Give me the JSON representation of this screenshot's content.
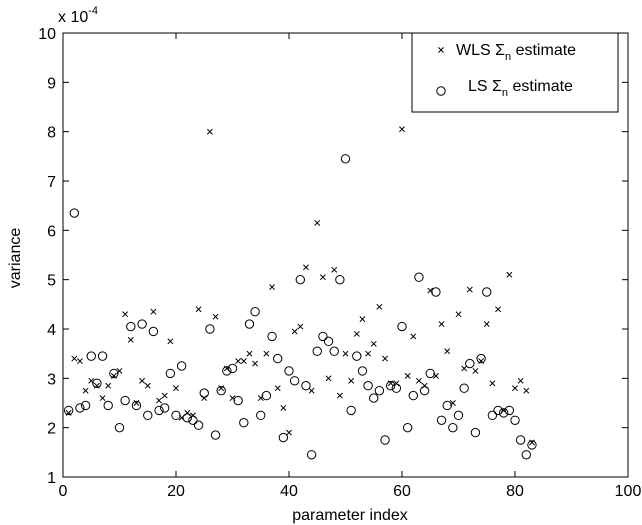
{
  "chart_data": {
    "type": "scatter",
    "xlabel": "parameter index",
    "ylabel": "variance",
    "y_exponent_label": "x 10",
    "y_exponent_power": "-4",
    "xlim": [
      0,
      100
    ],
    "ylim": [
      1,
      10
    ],
    "xticks": [
      0,
      20,
      40,
      60,
      80,
      100
    ],
    "yticks": [
      1,
      2,
      3,
      4,
      5,
      6,
      7,
      8,
      9,
      10
    ],
    "grid": false,
    "legend_position": "top-right",
    "series": [
      {
        "name": "WLS Σn estimate",
        "legend_base": "WLS Σ",
        "legend_sub": "n",
        "legend_tail": " estimate",
        "marker": "x",
        "x": [
          1,
          2,
          3,
          4,
          5,
          6,
          7,
          8,
          9,
          10,
          11,
          12,
          13,
          14,
          15,
          16,
          17,
          18,
          19,
          20,
          21,
          22,
          23,
          24,
          25,
          26,
          27,
          28,
          29,
          30,
          31,
          32,
          33,
          34,
          35,
          36,
          37,
          38,
          39,
          40,
          41,
          42,
          43,
          44,
          45,
          46,
          47,
          48,
          49,
          50,
          51,
          52,
          53,
          54,
          55,
          56,
          57,
          58,
          59,
          60,
          61,
          62,
          63,
          64,
          65,
          66,
          67,
          68,
          69,
          70,
          71,
          72,
          73,
          74,
          75,
          76,
          77,
          78,
          79,
          80,
          81,
          82,
          83
        ],
        "y": [
          2.3,
          3.4,
          3.35,
          2.75,
          2.95,
          2.85,
          2.6,
          2.85,
          3.05,
          3.15,
          4.3,
          3.78,
          2.5,
          2.95,
          2.85,
          4.35,
          2.55,
          2.65,
          3.75,
          2.8,
          2.2,
          2.3,
          2.25,
          4.4,
          2.6,
          8.0,
          4.25,
          2.8,
          3.2,
          2.6,
          3.35,
          3.35,
          3.5,
          3.3,
          2.6,
          3.5,
          4.85,
          2.8,
          2.4,
          1.9,
          3.95,
          4.05,
          5.25,
          2.75,
          6.15,
          5.05,
          3.0,
          5.2,
          2.65,
          3.5,
          2.95,
          3.9,
          4.2,
          3.5,
          3.7,
          4.45,
          3.4,
          2.9,
          2.9,
          8.05,
          3.05,
          3.85,
          2.95,
          2.85,
          4.78,
          3.05,
          4.1,
          3.55,
          2.5,
          4.3,
          3.2,
          4.8,
          3.15,
          3.35,
          4.1,
          2.9,
          4.4,
          2.35,
          5.1,
          2.8,
          2.95,
          2.75,
          1.7
        ]
      },
      {
        "name": "LS Σn estimate",
        "legend_base": "LS Σ",
        "legend_sub": "n",
        "legend_tail": " estimate",
        "marker": "o",
        "x": [
          1,
          2,
          3,
          4,
          5,
          6,
          7,
          8,
          9,
          10,
          11,
          12,
          13,
          14,
          15,
          16,
          17,
          18,
          19,
          20,
          21,
          22,
          23,
          24,
          25,
          26,
          27,
          28,
          29,
          30,
          31,
          32,
          33,
          34,
          35,
          36,
          37,
          38,
          39,
          40,
          41,
          42,
          43,
          44,
          45,
          46,
          47,
          48,
          49,
          50,
          51,
          52,
          53,
          54,
          55,
          56,
          57,
          58,
          59,
          60,
          61,
          62,
          63,
          64,
          65,
          66,
          67,
          68,
          69,
          70,
          71,
          72,
          73,
          74,
          75,
          76,
          77,
          78,
          79,
          80,
          81,
          82,
          83
        ],
        "y": [
          2.35,
          6.35,
          2.4,
          2.45,
          3.45,
          2.9,
          3.45,
          2.45,
          3.1,
          2.0,
          2.55,
          4.05,
          2.45,
          4.1,
          2.25,
          3.95,
          2.35,
          2.4,
          3.1,
          2.25,
          3.25,
          2.2,
          2.15,
          2.05,
          2.7,
          4.0,
          1.85,
          2.75,
          3.15,
          3.2,
          2.55,
          2.1,
          4.1,
          4.35,
          2.25,
          2.65,
          3.85,
          3.4,
          1.8,
          3.15,
          2.95,
          5.0,
          2.85,
          1.45,
          3.55,
          3.85,
          3.75,
          3.55,
          5.0,
          7.45,
          2.35,
          3.45,
          3.15,
          2.85,
          2.6,
          2.75,
          1.75,
          2.85,
          2.8,
          4.05,
          2.0,
          2.65,
          5.05,
          2.75,
          3.1,
          4.75,
          2.15,
          2.45,
          2.0,
          2.25,
          2.8,
          3.3,
          1.9,
          3.4,
          4.75,
          2.25,
          2.35,
          2.3,
          2.35,
          2.15,
          1.75,
          1.45,
          1.65
        ]
      }
    ]
  }
}
